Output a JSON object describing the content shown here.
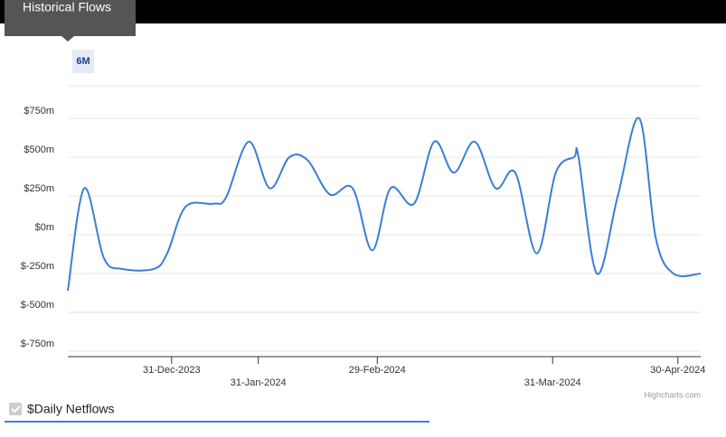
{
  "header": {
    "title": "Historical Flows",
    "range_button": "6M"
  },
  "chart_data": {
    "type": "line",
    "x": [
      0,
      2.6,
      5.7,
      8.6,
      13.6,
      15.7,
      18.6,
      23,
      25,
      28.6,
      31.9,
      35,
      37.9,
      41.4,
      45,
      48.1,
      51,
      54.7,
      57.9,
      61,
      64.3,
      67.6,
      70.7,
      74.1,
      77.1,
      80,
      80.7,
      83.6,
      86.9,
      90.3,
      92.9,
      95.7,
      100
    ],
    "series": [
      {
        "name": "$Daily Netflows",
        "color": "#3a7fd5",
        "values": [
          -360,
          300,
          -150,
          -220,
          -220,
          -120,
          180,
          200,
          240,
          600,
          300,
          500,
          480,
          260,
          300,
          -100,
          300,
          200,
          600,
          400,
          600,
          300,
          400,
          -120,
          400,
          500,
          500,
          -250,
          250,
          750,
          -20,
          -250,
          -250
        ]
      }
    ],
    "xlim": [
      0,
      100
    ],
    "xticks": [
      {
        "value": 16.4,
        "label": "31-Dec-2023"
      },
      {
        "value": 30.1,
        "label": "31-Jan-2024"
      },
      {
        "value": 48.9,
        "label": "29-Feb-2024"
      },
      {
        "value": 76.6,
        "label": "31-Mar-2024"
      },
      {
        "value": 96.4,
        "label": "30-Apr-2024"
      }
    ],
    "ylim": [
      -785,
      960
    ],
    "yticks": [
      {
        "value": -750,
        "label": "$-750m"
      },
      {
        "value": -500,
        "label": "$-500m"
      },
      {
        "value": -250,
        "label": "$-250m"
      },
      {
        "value": 0,
        "label": "$0m"
      },
      {
        "value": 250,
        "label": "$250m"
      },
      {
        "value": 500,
        "label": "$500m"
      },
      {
        "value": 750,
        "label": "$750m"
      }
    ],
    "grid": true,
    "credits": "Highcharts.com"
  }
}
